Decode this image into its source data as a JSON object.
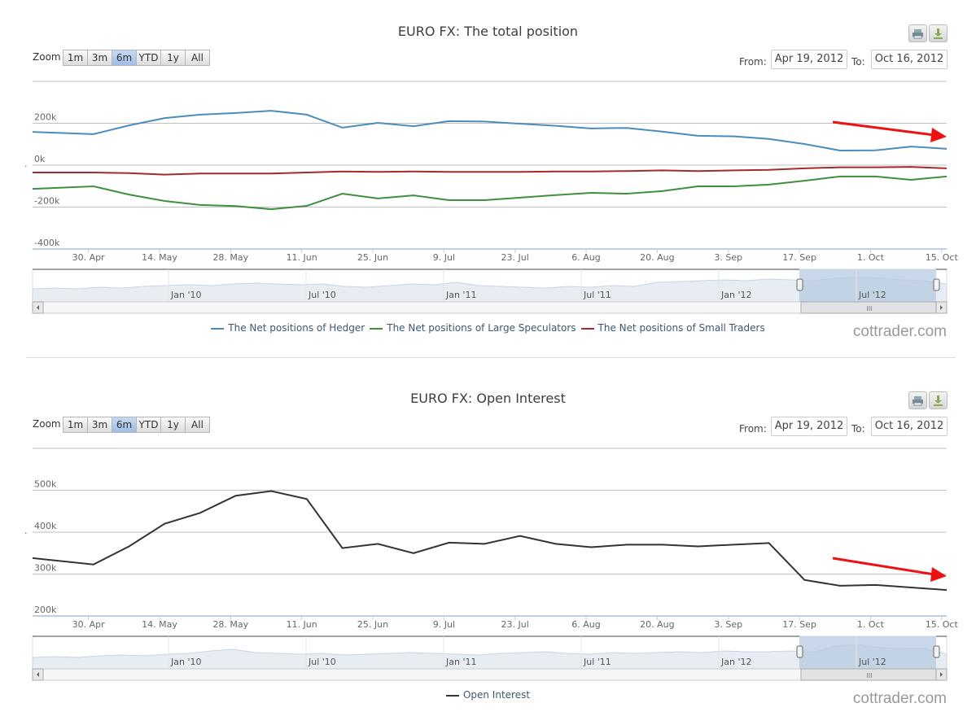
{
  "colors": {
    "hedger": "#4a8dbd",
    "speculators": "#3f8f3f",
    "small": "#a52a2a",
    "oi": "#333333",
    "arrow": "#ee1111",
    "nav_fill": "#e8edf4",
    "nav_sel": "#b6c9e2"
  },
  "watermark": "cottrader.com",
  "charts": [
    {
      "title": "EURO FX: The total position",
      "zoom_label": "Zoom",
      "zoom_buttons": [
        "1m",
        "3m",
        "6m",
        "YTD",
        "1y",
        "All"
      ],
      "selected_zoom": "6m",
      "from_label": "From:",
      "from_value": "Apr 19, 2012",
      "to_label": "To:",
      "to_value": "Oct 16, 2012",
      "legend": [
        "The Net positions of Hedger",
        "The Net positions of Large Speculators",
        "The Net positions of Small Traders"
      ]
    },
    {
      "title": "EURO FX: Open Interest",
      "zoom_label": "Zoom",
      "zoom_buttons": [
        "1m",
        "3m",
        "6m",
        "YTD",
        "1y",
        "All"
      ],
      "selected_zoom": "6m",
      "from_label": "From:",
      "from_value": "Apr 19, 2012",
      "to_label": "To:",
      "to_value": "Oct 16, 2012",
      "legend": [
        "Open Interest"
      ]
    }
  ],
  "chart_data": [
    {
      "type": "line",
      "title": "EURO FX: The total position",
      "x_range": [
        "2012-04-19",
        "2012-10-16"
      ],
      "ylim": [
        -400,
        400
      ],
      "y_ticks": [
        {
          "v": 200,
          "label": "200k"
        },
        {
          "v": 0,
          "label": "0k"
        },
        {
          "v": -200,
          "label": "-200k"
        },
        {
          "v": -400,
          "label": "-400k"
        }
      ],
      "x_ticks": [
        {
          "d": "2012-04-30",
          "label": "30. Apr"
        },
        {
          "d": "2012-05-14",
          "label": "14. May"
        },
        {
          "d": "2012-05-28",
          "label": "28. May"
        },
        {
          "d": "2012-06-11",
          "label": "11. Jun"
        },
        {
          "d": "2012-06-25",
          "label": "25. Jun"
        },
        {
          "d": "2012-07-09",
          "label": "9. Jul"
        },
        {
          "d": "2012-07-23",
          "label": "23. Jul"
        },
        {
          "d": "2012-08-06",
          "label": "6. Aug"
        },
        {
          "d": "2012-08-20",
          "label": "20. Aug"
        },
        {
          "d": "2012-09-03",
          "label": "3. Sep"
        },
        {
          "d": "2012-09-17",
          "label": "17. Sep"
        },
        {
          "d": "2012-10-01",
          "label": "1. Oct"
        },
        {
          "d": "2012-10-15",
          "label": "15. Oct"
        }
      ],
      "x": [
        "2012-04-19",
        "2012-05-01",
        "2012-05-08",
        "2012-05-15",
        "2012-05-22",
        "2012-05-29",
        "2012-06-05",
        "2012-06-12",
        "2012-06-19",
        "2012-06-26",
        "2012-07-03",
        "2012-07-10",
        "2012-07-17",
        "2012-07-24",
        "2012-07-31",
        "2012-08-07",
        "2012-08-14",
        "2012-08-21",
        "2012-08-28",
        "2012-09-04",
        "2012-09-11",
        "2012-09-18",
        "2012-09-25",
        "2012-10-02",
        "2012-10-09",
        "2012-10-16"
      ],
      "series": [
        {
          "name": "The Net positions of Hedger",
          "color_key": "hedger",
          "values": [
            159,
            148,
            190,
            225,
            241,
            249,
            260,
            241,
            179,
            202,
            186,
            210,
            208,
            198,
            188,
            175,
            178,
            160,
            140,
            138,
            125,
            101,
            70,
            71,
            89,
            78
          ]
        },
        {
          "name": "The Net positions of Large Speculators",
          "color_key": "speculators",
          "values": [
            -113,
            -101,
            -140,
            -171,
            -190,
            -195,
            -210,
            -194,
            -136,
            -159,
            -144,
            -167,
            -167,
            -155,
            -143,
            -132,
            -136,
            -124,
            -101,
            -101,
            -93,
            -74,
            -54,
            -54,
            -70,
            -54
          ]
        },
        {
          "name": "The Net positions of Small Traders",
          "color_key": "small",
          "values": [
            -35,
            -35,
            -38,
            -45,
            -40,
            -40,
            -40,
            -35,
            -30,
            -32,
            -30,
            -32,
            -32,
            -32,
            -30,
            -30,
            -28,
            -25,
            -28,
            -25,
            -22,
            -15,
            -10,
            -10,
            -8,
            -15
          ]
        }
      ],
      "unit": "thousands",
      "navigator_labels": [
        "Jan '10",
        "Jul '10",
        "Jan '11",
        "Jul '11",
        "Jan '12",
        "Jul '12"
      ],
      "navigator_series": [
        0.3,
        0.35,
        0.3,
        0.4,
        0.35,
        0.45,
        0.5,
        0.55,
        0.5,
        0.6,
        0.65,
        0.6,
        0.55,
        0.6,
        0.45,
        0.4,
        0.5,
        0.6,
        0.55,
        0.7,
        0.5,
        0.45,
        0.4,
        0.35,
        0.45,
        0.4,
        0.5,
        0.45,
        0.7,
        0.75,
        0.8,
        0.85,
        0.8,
        0.9,
        0.85,
        0.8,
        0.95,
        1.0,
        0.95,
        0.85,
        0.8,
        0.6
      ]
    },
    {
      "type": "line",
      "title": "EURO FX: Open Interest",
      "x_range": [
        "2012-04-19",
        "2012-10-16"
      ],
      "ylim": [
        200,
        600
      ],
      "y_ticks": [
        {
          "v": 500,
          "label": "500k"
        },
        {
          "v": 400,
          "label": "400k"
        },
        {
          "v": 300,
          "label": "300k"
        },
        {
          "v": 200,
          "label": "200k"
        }
      ],
      "x_ticks": [
        {
          "d": "2012-04-30",
          "label": "30. Apr"
        },
        {
          "d": "2012-05-14",
          "label": "14. May"
        },
        {
          "d": "2012-05-28",
          "label": "28. May"
        },
        {
          "d": "2012-06-11",
          "label": "11. Jun"
        },
        {
          "d": "2012-06-25",
          "label": "25. Jun"
        },
        {
          "d": "2012-07-09",
          "label": "9. Jul"
        },
        {
          "d": "2012-07-23",
          "label": "23. Jul"
        },
        {
          "d": "2012-08-06",
          "label": "6. Aug"
        },
        {
          "d": "2012-08-20",
          "label": "20. Aug"
        },
        {
          "d": "2012-09-03",
          "label": "3. Sep"
        },
        {
          "d": "2012-09-17",
          "label": "17. Sep"
        },
        {
          "d": "2012-10-01",
          "label": "1. Oct"
        },
        {
          "d": "2012-10-15",
          "label": "15. Oct"
        }
      ],
      "x": [
        "2012-04-19",
        "2012-05-01",
        "2012-05-08",
        "2012-05-15",
        "2012-05-22",
        "2012-05-29",
        "2012-06-05",
        "2012-06-12",
        "2012-06-19",
        "2012-06-26",
        "2012-07-03",
        "2012-07-10",
        "2012-07-17",
        "2012-07-24",
        "2012-07-31",
        "2012-08-07",
        "2012-08-14",
        "2012-08-21",
        "2012-08-28",
        "2012-09-04",
        "2012-09-11",
        "2012-09-18",
        "2012-09-25",
        "2012-10-02",
        "2012-10-09",
        "2012-10-16"
      ],
      "series": [
        {
          "name": "Open Interest",
          "color_key": "oi",
          "values": [
            338,
            323,
            366,
            420,
            446,
            487,
            498,
            479,
            362,
            372,
            350,
            375,
            372,
            391,
            372,
            364,
            370,
            370,
            366,
            370,
            374,
            286,
            272,
            274,
            268,
            262
          ]
        }
      ],
      "unit": "thousands",
      "navigator_labels": [
        "Jan '10",
        "Jul '10",
        "Jan '11",
        "Jul '11",
        "Jan '12",
        "Jul '12"
      ],
      "navigator_series": [
        0.2,
        0.25,
        0.2,
        0.3,
        0.35,
        0.3,
        0.4,
        0.45,
        0.6,
        0.7,
        0.5,
        0.45,
        0.4,
        0.45,
        0.35,
        0.4,
        0.45,
        0.5,
        0.45,
        0.4,
        0.35,
        0.45,
        0.5,
        0.55,
        0.45,
        0.4,
        0.5,
        0.45,
        0.5,
        0.55,
        0.5,
        0.6,
        0.55,
        0.55,
        0.6,
        0.5,
        0.9,
        1.0,
        0.8,
        0.75,
        0.75,
        0.4
      ]
    }
  ]
}
